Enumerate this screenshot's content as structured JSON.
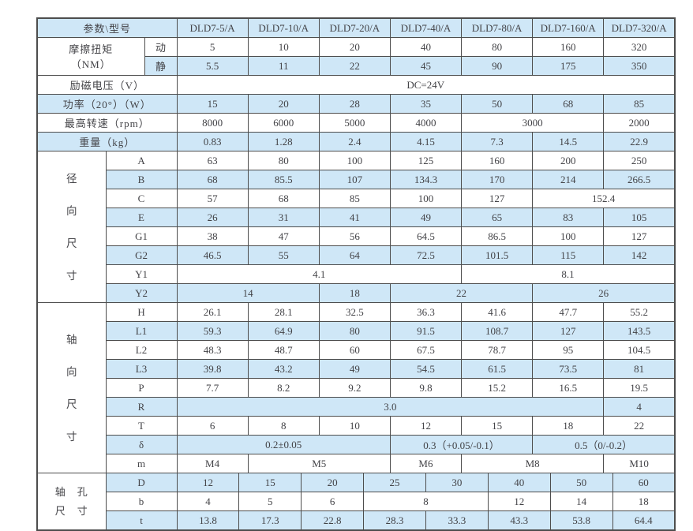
{
  "colors": {
    "row_blue": "#cfe7f7",
    "row_white": "#ffffff",
    "border": "#4d4d4d",
    "text": "#434347"
  },
  "table": {
    "corner_label": "参数\\型号",
    "models": [
      "DLD7-5/A",
      "DLD7-10/A",
      "DLD7-20/A",
      "DLD7-40/A",
      "DLD7-80/A",
      "DLD7-160/A",
      "DLD7-320/A"
    ],
    "rows": [
      {
        "shade": "blue",
        "cells": [
          {
            "text": "参数\\型号",
            "span": 3,
            "kind": "corner"
          },
          {
            "text": "DLD7-5/A",
            "span": 8,
            "kind": "model"
          },
          {
            "text": "DLD7-10/A",
            "span": 8,
            "kind": "model"
          },
          {
            "text": "DLD7-20/A",
            "span": 8,
            "kind": "model"
          },
          {
            "text": "DLD7-40/A",
            "span": 8,
            "kind": "model"
          },
          {
            "text": "DLD7-80/A",
            "span": 8,
            "kind": "model"
          },
          {
            "text": "DLD7-160/A",
            "span": 8,
            "kind": "model"
          },
          {
            "text": "DLD7-320/A",
            "span": 8,
            "kind": "model"
          }
        ]
      },
      {
        "shade": "white",
        "cells": [
          {
            "text": "摩擦扭矩\n（NM）",
            "span": 2,
            "rows": 2,
            "kind": "mparam"
          },
          {
            "text": "动",
            "span": 1,
            "kind": "sub"
          },
          {
            "text": "5",
            "span": 8
          },
          {
            "text": "10",
            "span": 8
          },
          {
            "text": "20",
            "span": 8
          },
          {
            "text": "40",
            "span": 8
          },
          {
            "text": "80",
            "span": 8
          },
          {
            "text": "160",
            "span": 8
          },
          {
            "text": "320",
            "span": 8
          }
        ]
      },
      {
        "shade": "blue",
        "cells": [
          {
            "text": "静",
            "span": 1,
            "kind": "sub"
          },
          {
            "text": "5.5",
            "span": 8
          },
          {
            "text": "11",
            "span": 8
          },
          {
            "text": "22",
            "span": 8
          },
          {
            "text": "45",
            "span": 8
          },
          {
            "text": "90",
            "span": 8
          },
          {
            "text": "175",
            "span": 8
          },
          {
            "text": "350",
            "span": 8
          }
        ]
      },
      {
        "shade": "white",
        "cells": [
          {
            "text": "励磁电压（V）",
            "span": 3,
            "kind": "param"
          },
          {
            "text": "DC=24V",
            "span": 56
          }
        ]
      },
      {
        "shade": "blue",
        "cells": [
          {
            "text": "功率（20°）（W）",
            "span": 3,
            "kind": "param"
          },
          {
            "text": "15",
            "span": 8
          },
          {
            "text": "20",
            "span": 8
          },
          {
            "text": "28",
            "span": 8
          },
          {
            "text": "35",
            "span": 8
          },
          {
            "text": "50",
            "span": 8
          },
          {
            "text": "68",
            "span": 8
          },
          {
            "text": "85",
            "span": 8
          }
        ]
      },
      {
        "shade": "white",
        "cells": [
          {
            "text": "最高转速（rpm）",
            "span": 3,
            "kind": "param"
          },
          {
            "text": "8000",
            "span": 8
          },
          {
            "text": "6000",
            "span": 8
          },
          {
            "text": "5000",
            "span": 8
          },
          {
            "text": "4000",
            "span": 8
          },
          {
            "text": "3000",
            "span": 16
          },
          {
            "text": "2000",
            "span": 8
          }
        ]
      },
      {
        "shade": "blue",
        "cells": [
          {
            "text": "重量（kg）",
            "span": 3,
            "kind": "param"
          },
          {
            "text": "0.83",
            "span": 8
          },
          {
            "text": "1.28",
            "span": 8
          },
          {
            "text": "2.4",
            "span": 8
          },
          {
            "text": "4.15",
            "span": 8
          },
          {
            "text": "7.3",
            "span": 8
          },
          {
            "text": "14.5",
            "span": 8
          },
          {
            "text": "22.9",
            "span": 8
          }
        ]
      },
      {
        "shade": "white",
        "cells": [
          {
            "text": "径\n向\n尺\n寸",
            "span": 1,
            "rows": 8,
            "kind": "vsection"
          },
          {
            "text": "A",
            "span": 2,
            "kind": "sub"
          },
          {
            "text": "63",
            "span": 8
          },
          {
            "text": "80",
            "span": 8
          },
          {
            "text": "100",
            "span": 8
          },
          {
            "text": "125",
            "span": 8
          },
          {
            "text": "160",
            "span": 8
          },
          {
            "text": "200",
            "span": 8
          },
          {
            "text": "250",
            "span": 8
          }
        ]
      },
      {
        "shade": "blue",
        "cells": [
          {
            "text": "B",
            "span": 2,
            "kind": "sub"
          },
          {
            "text": "68",
            "span": 8
          },
          {
            "text": "85.5",
            "span": 8
          },
          {
            "text": "107",
            "span": 8
          },
          {
            "text": "134.3",
            "span": 8
          },
          {
            "text": "170",
            "span": 8
          },
          {
            "text": "214",
            "span": 8
          },
          {
            "text": "266.5",
            "span": 8
          }
        ]
      },
      {
        "shade": "white",
        "cells": [
          {
            "text": "C",
            "span": 2,
            "kind": "sub"
          },
          {
            "text": "57",
            "span": 8
          },
          {
            "text": "68",
            "span": 8
          },
          {
            "text": "85",
            "span": 8
          },
          {
            "text": "100",
            "span": 8
          },
          {
            "text": "127",
            "span": 8
          },
          {
            "text": "152.4",
            "span": 16
          }
        ]
      },
      {
        "shade": "blue",
        "cells": [
          {
            "text": "E",
            "span": 2,
            "kind": "sub"
          },
          {
            "text": "26",
            "span": 8
          },
          {
            "text": "31",
            "span": 8
          },
          {
            "text": "41",
            "span": 8
          },
          {
            "text": "49",
            "span": 8
          },
          {
            "text": "65",
            "span": 8
          },
          {
            "text": "83",
            "span": 8
          },
          {
            "text": "105",
            "span": 8
          }
        ]
      },
      {
        "shade": "white",
        "cells": [
          {
            "text": "G1",
            "span": 2,
            "kind": "sub"
          },
          {
            "text": "38",
            "span": 8
          },
          {
            "text": "47",
            "span": 8
          },
          {
            "text": "56",
            "span": 8
          },
          {
            "text": "64.5",
            "span": 8
          },
          {
            "text": "86.5",
            "span": 8
          },
          {
            "text": "100",
            "span": 8
          },
          {
            "text": "127",
            "span": 8
          }
        ]
      },
      {
        "shade": "blue",
        "cells": [
          {
            "text": "G2",
            "span": 2,
            "kind": "sub"
          },
          {
            "text": "46.5",
            "span": 8
          },
          {
            "text": "55",
            "span": 8
          },
          {
            "text": "64",
            "span": 8
          },
          {
            "text": "72.5",
            "span": 8
          },
          {
            "text": "101.5",
            "span": 8
          },
          {
            "text": "115",
            "span": 8
          },
          {
            "text": "142",
            "span": 8
          }
        ]
      },
      {
        "shade": "white",
        "cells": [
          {
            "text": "Y1",
            "span": 2,
            "kind": "sub"
          },
          {
            "text": "4.1",
            "span": 32
          },
          {
            "text": "8.1",
            "span": 24
          }
        ]
      },
      {
        "shade": "blue",
        "cells": [
          {
            "text": "Y2",
            "span": 2,
            "kind": "sub"
          },
          {
            "text": "14",
            "span": 16
          },
          {
            "text": "18",
            "span": 8
          },
          {
            "text": "22",
            "span": 16
          },
          {
            "text": "26",
            "span": 16
          }
        ]
      },
      {
        "shade": "white",
        "cells": [
          {
            "text": "轴\n向\n尺\n寸",
            "span": 1,
            "rows": 9,
            "kind": "vsection"
          },
          {
            "text": "H",
            "span": 2,
            "kind": "sub"
          },
          {
            "text": "26.1",
            "span": 8
          },
          {
            "text": "28.1",
            "span": 8
          },
          {
            "text": "32.5",
            "span": 8
          },
          {
            "text": "36.3",
            "span": 8
          },
          {
            "text": "41.6",
            "span": 8
          },
          {
            "text": "47.7",
            "span": 8
          },
          {
            "text": "55.2",
            "span": 8
          }
        ]
      },
      {
        "shade": "blue",
        "cells": [
          {
            "text": "L1",
            "span": 2,
            "kind": "sub"
          },
          {
            "text": "59.3",
            "span": 8
          },
          {
            "text": "64.9",
            "span": 8
          },
          {
            "text": "80",
            "span": 8
          },
          {
            "text": "91.5",
            "span": 8
          },
          {
            "text": "108.7",
            "span": 8
          },
          {
            "text": "127",
            "span": 8
          },
          {
            "text": "143.5",
            "span": 8
          }
        ]
      },
      {
        "shade": "white",
        "cells": [
          {
            "text": "L2",
            "span": 2,
            "kind": "sub"
          },
          {
            "text": "48.3",
            "span": 8
          },
          {
            "text": "48.7",
            "span": 8
          },
          {
            "text": "60",
            "span": 8
          },
          {
            "text": "67.5",
            "span": 8
          },
          {
            "text": "78.7",
            "span": 8
          },
          {
            "text": "95",
            "span": 8
          },
          {
            "text": "104.5",
            "span": 8
          }
        ]
      },
      {
        "shade": "blue",
        "cells": [
          {
            "text": "L3",
            "span": 2,
            "kind": "sub"
          },
          {
            "text": "39.8",
            "span": 8
          },
          {
            "text": "43.2",
            "span": 8
          },
          {
            "text": "49",
            "span": 8
          },
          {
            "text": "54.5",
            "span": 8
          },
          {
            "text": "61.5",
            "span": 8
          },
          {
            "text": "73.5",
            "span": 8
          },
          {
            "text": "81",
            "span": 8
          }
        ]
      },
      {
        "shade": "white",
        "cells": [
          {
            "text": "P",
            "span": 2,
            "kind": "sub"
          },
          {
            "text": "7.7",
            "span": 8
          },
          {
            "text": "8.2",
            "span": 8
          },
          {
            "text": "9.2",
            "span": 8
          },
          {
            "text": "9.8",
            "span": 8
          },
          {
            "text": "15.2",
            "span": 8
          },
          {
            "text": "16.5",
            "span": 8
          },
          {
            "text": "19.5",
            "span": 8
          }
        ]
      },
      {
        "shade": "blue",
        "cells": [
          {
            "text": "R",
            "span": 2,
            "kind": "sub"
          },
          {
            "text": "3.0",
            "span": 48
          },
          {
            "text": "4",
            "span": 8
          }
        ]
      },
      {
        "shade": "white",
        "cells": [
          {
            "text": "T",
            "span": 2,
            "kind": "sub"
          },
          {
            "text": "6",
            "span": 8
          },
          {
            "text": "8",
            "span": 8
          },
          {
            "text": "10",
            "span": 8
          },
          {
            "text": "12",
            "span": 8
          },
          {
            "text": "15",
            "span": 8
          },
          {
            "text": "18",
            "span": 8
          },
          {
            "text": "22",
            "span": 8
          }
        ]
      },
      {
        "shade": "blue",
        "cells": [
          {
            "text": "δ",
            "span": 2,
            "kind": "sub"
          },
          {
            "text": "0.2±0.05",
            "span": 24
          },
          {
            "text": "0.3（+0.05/-0.1）",
            "span": 16
          },
          {
            "text": "0.5（0/-0.2）",
            "span": 16
          }
        ]
      },
      {
        "shade": "white",
        "cells": [
          {
            "text": "m",
            "span": 2,
            "kind": "sub"
          },
          {
            "text": "M4",
            "span": 8
          },
          {
            "text": "M5",
            "span": 16
          },
          {
            "text": "M6",
            "span": 8
          },
          {
            "text": "M8",
            "span": 16
          },
          {
            "text": "M10",
            "span": 8
          }
        ]
      },
      {
        "shade": "blue",
        "cells": [
          {
            "text": "轴　孔\n尺　寸",
            "span": 1,
            "rows": 3,
            "kind": "vsection2"
          },
          {
            "text": "D",
            "span": 2,
            "kind": "sub"
          },
          {
            "text": "12",
            "span": 7
          },
          {
            "text": "15",
            "span": 7
          },
          {
            "text": "20",
            "span": 7
          },
          {
            "text": "25",
            "span": 7
          },
          {
            "text": "30",
            "span": 7
          },
          {
            "text": "40",
            "span": 7
          },
          {
            "text": "50",
            "span": 7
          },
          {
            "text": "60",
            "span": 7
          }
        ]
      },
      {
        "shade": "white",
        "cells": [
          {
            "text": "b",
            "span": 2,
            "kind": "sub"
          },
          {
            "text": "4",
            "span": 7
          },
          {
            "text": "5",
            "span": 7
          },
          {
            "text": "6",
            "span": 7
          },
          {
            "text": "8",
            "span": 14
          },
          {
            "text": "12",
            "span": 7
          },
          {
            "text": "14",
            "span": 7
          },
          {
            "text": "18",
            "span": 7
          }
        ]
      },
      {
        "shade": "blue",
        "cells": [
          {
            "text": "t",
            "span": 2,
            "kind": "sub"
          },
          {
            "text": "13.8",
            "span": 7
          },
          {
            "text": "17.3",
            "span": 7
          },
          {
            "text": "22.8",
            "span": 7
          },
          {
            "text": "28.3",
            "span": 7
          },
          {
            "text": "33.3",
            "span": 7
          },
          {
            "text": "43.3",
            "span": 7
          },
          {
            "text": "53.8",
            "span": 7
          },
          {
            "text": "64.4",
            "span": 7
          }
        ]
      }
    ]
  }
}
